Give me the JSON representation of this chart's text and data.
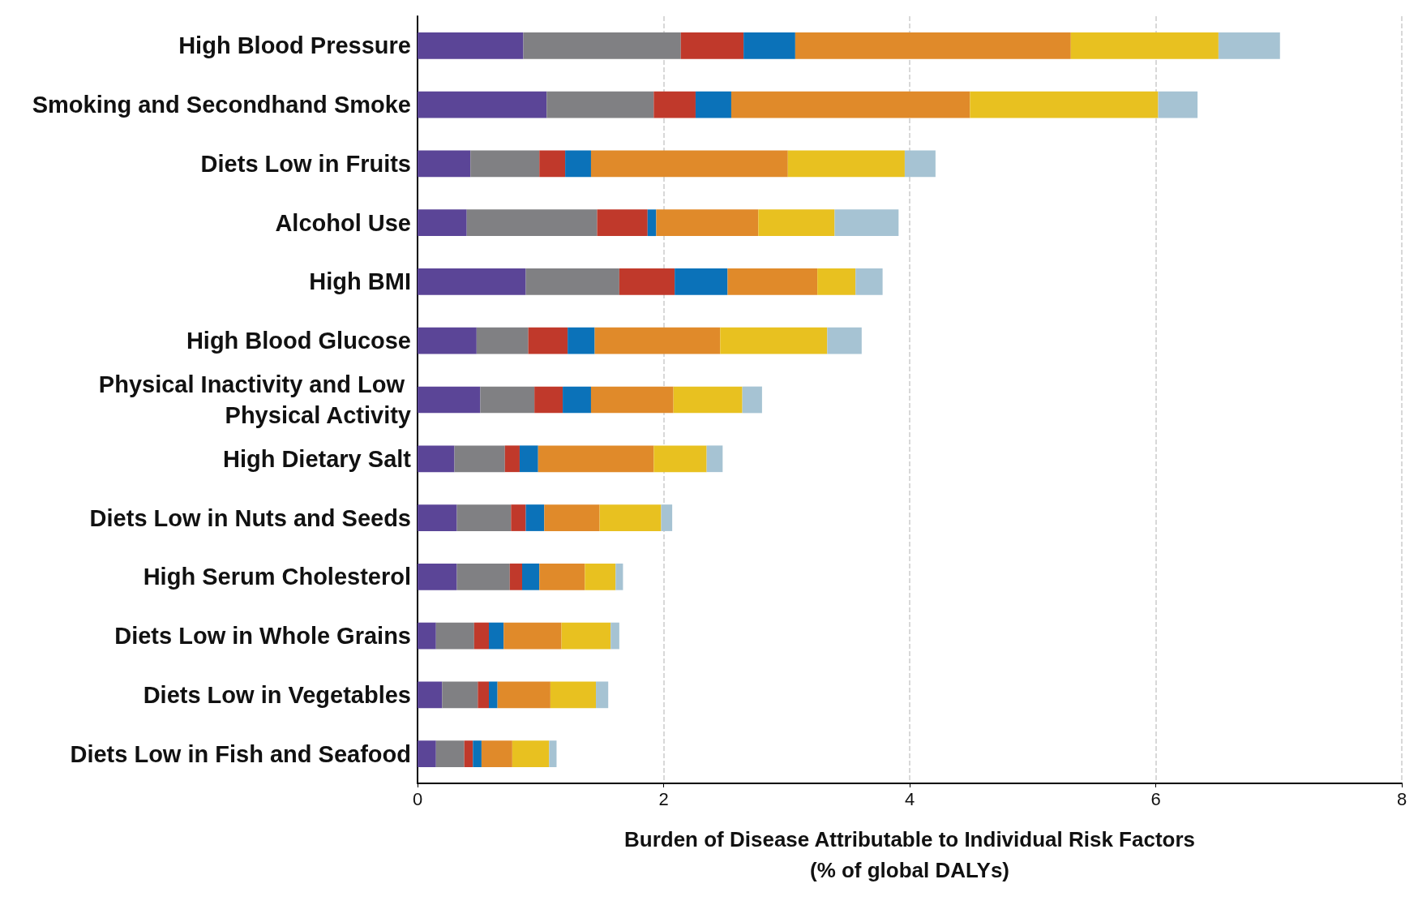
{
  "chart_data": {
    "type": "bar",
    "orientation": "horizontal",
    "stacked": true,
    "xlabel": "Burden of Disease Attributable to Individual Risk Factors\n(% of global DALYs)",
    "categories": [
      "High Blood Pressure",
      "Smoking and Secondhand Smoke",
      "Diets Low in Fruits",
      "Alcohol Use",
      "High BMI",
      "High Blood Glucose",
      "Physical Inactivity and Low Physical Activity",
      "High Dietary Salt",
      "Diets Low in Nuts and Seeds",
      "High Serum Cholesterol",
      "Diets Low in Whole Grains",
      "Diets Low in Vegetables",
      "Diets Low in Fish and Seafood"
    ],
    "series": [
      {
        "color": "#5b4597",
        "values": [
          0.86,
          1.05,
          0.43,
          0.4,
          0.88,
          0.48,
          0.51,
          0.3,
          0.32,
          0.32,
          0.15,
          0.2,
          0.15
        ]
      },
      {
        "color": "#808083",
        "values": [
          1.28,
          0.87,
          0.56,
          1.06,
          0.76,
          0.42,
          0.44,
          0.41,
          0.44,
          0.43,
          0.31,
          0.29,
          0.23
        ]
      },
      {
        "color": "#c0392b",
        "values": [
          0.51,
          0.34,
          0.21,
          0.41,
          0.45,
          0.32,
          0.23,
          0.12,
          0.12,
          0.1,
          0.12,
          0.09,
          0.07
        ]
      },
      {
        "color": "#0b72b9",
        "values": [
          0.42,
          0.29,
          0.21,
          0.07,
          0.43,
          0.22,
          0.23,
          0.15,
          0.15,
          0.14,
          0.12,
          0.07,
          0.07
        ]
      },
      {
        "color": "#e08a2a",
        "values": [
          2.24,
          1.94,
          1.6,
          0.83,
          0.73,
          1.02,
          0.67,
          0.94,
          0.45,
          0.37,
          0.47,
          0.43,
          0.25
        ]
      },
      {
        "color": "#e8c120",
        "values": [
          1.2,
          1.53,
          0.95,
          0.62,
          0.31,
          0.87,
          0.56,
          0.43,
          0.5,
          0.25,
          0.4,
          0.37,
          0.3
        ]
      },
      {
        "color": "#a6c3d3",
        "values": [
          0.5,
          0.32,
          0.25,
          0.52,
          0.22,
          0.28,
          0.16,
          0.13,
          0.09,
          0.06,
          0.07,
          0.1,
          0.06
        ]
      }
    ],
    "xlim": [
      0,
      8
    ],
    "xticks": [
      0,
      2,
      4,
      6,
      8
    ],
    "grid": "x"
  }
}
